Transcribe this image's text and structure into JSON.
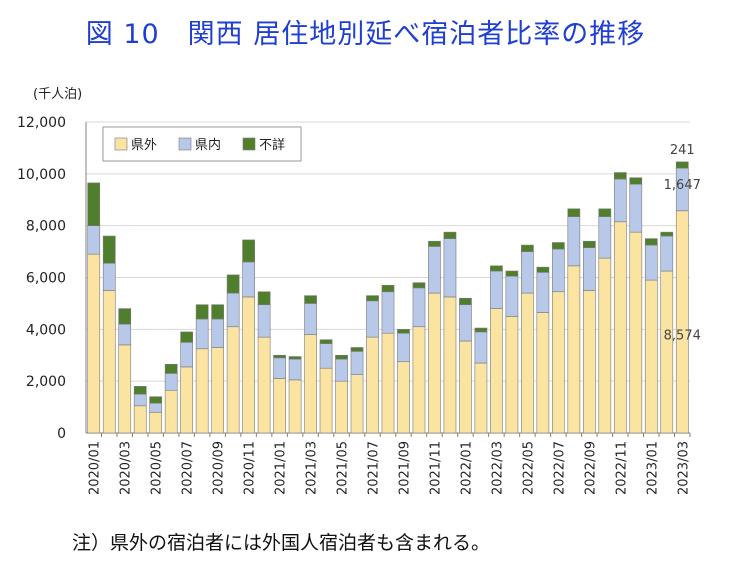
{
  "title": "図 10　関西 居住地別延べ宿泊者比率の推移",
  "unit_label": "(千人泊)",
  "footnote": "注）県外の宿泊者には外国人宿泊者も含まれる。",
  "colors": {
    "out_pref": "#fbe3a1",
    "in_pref": "#b8c8e9",
    "unknown": "#4f7f2c",
    "grid": "#d9d9d9",
    "axis": "#808080"
  },
  "chart_data": {
    "type": "bar",
    "stacked": true,
    "categories": [
      "2020/01",
      "2020/02",
      "2020/03",
      "2020/04",
      "2020/05",
      "2020/06",
      "2020/07",
      "2020/08",
      "2020/09",
      "2020/10",
      "2020/11",
      "2020/12",
      "2021/01",
      "2021/02",
      "2021/03",
      "2021/04",
      "2021/05",
      "2021/06",
      "2021/07",
      "2021/08",
      "2021/09",
      "2021/10",
      "2021/11",
      "2021/12",
      "2022/01",
      "2022/02",
      "2022/03",
      "2022/04",
      "2022/05",
      "2022/06",
      "2022/07",
      "2022/08",
      "2022/09",
      "2022/10",
      "2022/11",
      "2022/12",
      "2023/01",
      "2023/02",
      "2023/03"
    ],
    "tick_labels": [
      "2020/01",
      "",
      "2020/03",
      "",
      "2020/05",
      "",
      "2020/07",
      "",
      "2020/09",
      "",
      "2020/11",
      "",
      "2021/01",
      "",
      "2021/03",
      "",
      "2021/05",
      "",
      "2021/07",
      "",
      "2021/09",
      "",
      "2021/11",
      "",
      "2022/01",
      "",
      "2022/03",
      "",
      "2022/05",
      "",
      "2022/07",
      "",
      "2022/09",
      "",
      "2022/11",
      "",
      "2023/01",
      "",
      "2023/03"
    ],
    "series": [
      {
        "name": "県外",
        "color": "#fbe3a1",
        "values": [
          6900,
          5500,
          3400,
          1050,
          800,
          1650,
          2550,
          3250,
          3300,
          4100,
          5250,
          3700,
          2100,
          2050,
          3800,
          2500,
          2000,
          2250,
          3700,
          3850,
          2750,
          4100,
          5400,
          5250,
          3550,
          2700,
          4800,
          4500,
          5400,
          4650,
          5450,
          6450,
          5500,
          6750,
          8150,
          7750,
          5900,
          6250,
          8574
        ]
      },
      {
        "name": "県内",
        "color": "#b8c8e9",
        "values": [
          1100,
          1050,
          800,
          450,
          350,
          650,
          950,
          1150,
          1100,
          1300,
          1350,
          1250,
          800,
          800,
          1200,
          950,
          850,
          900,
          1400,
          1600,
          1100,
          1500,
          1800,
          2250,
          1400,
          1200,
          1450,
          1550,
          1600,
          1550,
          1650,
          1900,
          1650,
          1600,
          1650,
          1850,
          1350,
          1350,
          1647
        ]
      },
      {
        "name": "不詳",
        "color": "#4f7f2c",
        "values": [
          1650,
          1050,
          600,
          300,
          250,
          350,
          400,
          550,
          550,
          700,
          850,
          500,
          100,
          100,
          300,
          150,
          150,
          150,
          200,
          250,
          150,
          200,
          200,
          250,
          250,
          150,
          200,
          200,
          250,
          200,
          250,
          300,
          250,
          300,
          250,
          250,
          250,
          150,
          241
        ]
      }
    ],
    "data_labels": [
      {
        "category": "2023/03",
        "series": "県外",
        "text": "8,574"
      },
      {
        "category": "2023/03",
        "series": "県内",
        "text": "1,647"
      },
      {
        "category": "2023/03",
        "series": "不詳",
        "text": "241"
      }
    ],
    "ylim": [
      0,
      12000
    ],
    "yticks": [
      0,
      2000,
      4000,
      6000,
      8000,
      10000,
      12000
    ],
    "ytick_labels": [
      "0",
      "2,000",
      "4,000",
      "6,000",
      "8,000",
      "10,000",
      "12,000"
    ],
    "grid": true,
    "legend_position": "top-left"
  }
}
